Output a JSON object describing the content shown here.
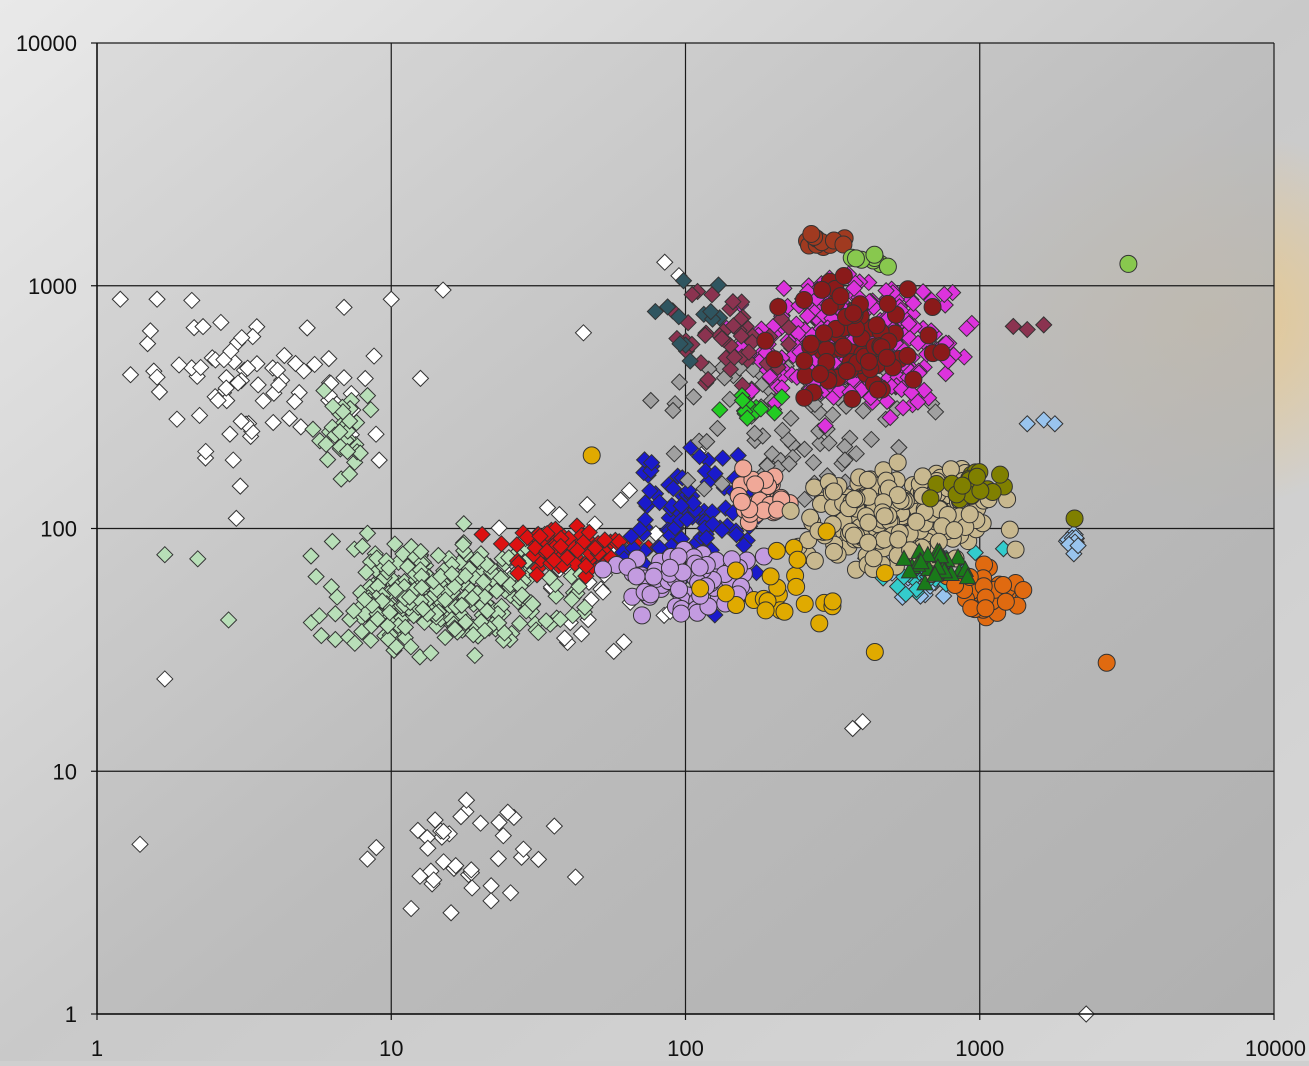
{
  "chart_data": {
    "type": "scatter",
    "x_scale": "log",
    "y_scale": "log",
    "xlim": [
      1,
      10000
    ],
    "ylim": [
      1,
      10000
    ],
    "grid": true,
    "x_ticks": [
      "1",
      "10",
      "100",
      "1000",
      "10000"
    ],
    "y_ticks": [
      "1",
      "10",
      "100",
      "1000",
      "10000"
    ],
    "series": [
      {
        "marker": "diamond",
        "color": "#ffffff",
        "clusters": [
          {
            "x": [
              1.2,
              15
            ],
            "y": [
              100,
              1000
            ],
            "n": 55
          },
          {
            "x": [
              1.2,
              6
            ],
            "y": [
              200,
              900
            ],
            "n": 25
          },
          {
            "x": [
              6,
              60
            ],
            "y": [
              2,
              12
            ],
            "n": 40
          },
          {
            "x": [
              20,
              140
            ],
            "y": [
              20,
              220
            ],
            "n": 45
          }
        ],
        "points": [
          [
            1.2,
            880
          ],
          [
            1.6,
            880
          ],
          [
            2.1,
            870
          ],
          [
            1.3,
            430
          ],
          [
            1.6,
            420
          ],
          [
            1.4,
            5
          ],
          [
            1.7,
            24
          ],
          [
            15,
            960
          ],
          [
            10,
            880
          ],
          [
            45,
            640
          ],
          [
            85,
            1250
          ],
          [
            95,
            1100
          ],
          [
            370,
            15
          ],
          [
            400,
            16
          ],
          [
            2300,
            1
          ]
        ]
      },
      {
        "marker": "diamond",
        "color": "#b8dfb8",
        "clusters": [
          {
            "x": [
              4,
              60
            ],
            "y": [
              25,
              110
            ],
            "n": 320
          },
          {
            "x": [
              5,
              10
            ],
            "y": [
              150,
              400
            ],
            "n": 35
          }
        ],
        "points": [
          [
            1.7,
            78
          ],
          [
            2.2,
            75
          ],
          [
            2.8,
            42
          ]
        ]
      },
      {
        "marker": "diamond",
        "color": "#dd1111",
        "clusters": [
          {
            "x": [
              20,
              90
            ],
            "y": [
              60,
              110
            ],
            "n": 110
          }
        ]
      },
      {
        "marker": "diamond",
        "color": "#1a1acc",
        "clusters": [
          {
            "x": [
              45,
              240
            ],
            "y": [
              40,
              280
            ],
            "n": 100
          }
        ]
      },
      {
        "marker": "diamond",
        "color": "#a0a0a0",
        "clusters": [
          {
            "x": [
              50,
              900
            ],
            "y": [
              80,
              900
            ],
            "n": 95
          }
        ]
      },
      {
        "marker": "diamond",
        "color": "#dd33dd",
        "clusters": [
          {
            "x": [
              120,
              1100
            ],
            "y": [
              250,
              1300
            ],
            "n": 360
          }
        ]
      },
      {
        "marker": "diamond",
        "color": "#8b3350",
        "clusters": [
          {
            "x": [
              70,
              280
            ],
            "y": [
              350,
              1100
            ],
            "n": 45
          }
        ],
        "points": [
          [
            1300,
            680
          ],
          [
            1450,
            660
          ],
          [
            1650,
            690
          ]
        ]
      },
      {
        "marker": "diamond",
        "color": "#2f5560",
        "clusters": [
          {
            "x": [
              70,
              160
            ],
            "y": [
              400,
              1400
            ],
            "n": 12
          }
        ]
      },
      {
        "marker": "diamond",
        "color": "#22cc22",
        "clusters": [
          {
            "x": [
              110,
              240
            ],
            "y": [
              250,
              420
            ],
            "n": 12
          }
        ]
      },
      {
        "marker": "diamond",
        "color": "#99c4ee",
        "clusters": [
          {
            "x": [
              400,
              1000
            ],
            "y": [
              45,
              90
            ],
            "n": 20
          },
          {
            "x": [
              1900,
              2300
            ],
            "y": [
              75,
              100
            ],
            "n": 12
          }
        ],
        "points": [
          [
            1450,
            270
          ],
          [
            1650,
            280
          ],
          [
            1800,
            270
          ]
        ]
      },
      {
        "marker": "diamond",
        "color": "#33cccc",
        "clusters": [
          {
            "x": [
              350,
              1300
            ],
            "y": [
              45,
              110
            ],
            "n": 35
          }
        ]
      },
      {
        "marker": "circle",
        "color": "#c39be0",
        "clusters": [
          {
            "x": [
              45,
              230
            ],
            "y": [
              40,
              90
            ],
            "n": 80
          }
        ]
      },
      {
        "marker": "circle",
        "color": "#f0a898",
        "clusters": [
          {
            "x": [
              130,
              240
            ],
            "y": [
              100,
              180
            ],
            "n": 35
          }
        ]
      },
      {
        "marker": "circle",
        "color": "#c8b88f",
        "clusters": [
          {
            "x": [
              200,
              1400
            ],
            "y": [
              60,
              210
            ],
            "n": 260
          }
        ]
      },
      {
        "marker": "circle",
        "color": "#808000",
        "clusters": [
          {
            "x": [
              600,
              1400
            ],
            "y": [
              110,
              190
            ],
            "n": 25
          }
        ],
        "points": [
          [
            2100,
            110
          ]
        ]
      },
      {
        "marker": "circle",
        "color": "#e06a10",
        "clusters": [
          {
            "x": [
              700,
              1500
            ],
            "y": [
              40,
              75
            ],
            "n": 45
          }
        ],
        "points": [
          [
            2700,
            28
          ]
        ]
      },
      {
        "marker": "circle",
        "color": "#e0aa00",
        "clusters": [
          {
            "x": [
              80,
              700
            ],
            "y": [
              30,
              110
            ],
            "n": 25
          }
        ],
        "points": [
          [
            48,
            200
          ],
          [
            440,
            31
          ]
        ]
      },
      {
        "marker": "circle",
        "color": "#8a1a1a",
        "clusters": [
          {
            "x": [
              150,
              950
            ],
            "y": [
              250,
              1350
            ],
            "n": 80
          }
        ]
      },
      {
        "marker": "circle",
        "color": "#a03a20",
        "clusters": [
          {
            "x": [
              220,
              400
            ],
            "y": [
              1350,
              1700
            ],
            "n": 12
          }
        ]
      },
      {
        "marker": "circle",
        "color": "#88c84e",
        "clusters": [
          {
            "x": [
              300,
              600
            ],
            "y": [
              1150,
              1450
            ],
            "n": 9
          }
        ],
        "points": [
          [
            3200,
            1230
          ]
        ]
      },
      {
        "marker": "triangle",
        "color": "#1a7a1a",
        "clusters": [
          {
            "x": [
              500,
              1100
            ],
            "y": [
              55,
              95
            ],
            "n": 25
          }
        ]
      }
    ]
  }
}
